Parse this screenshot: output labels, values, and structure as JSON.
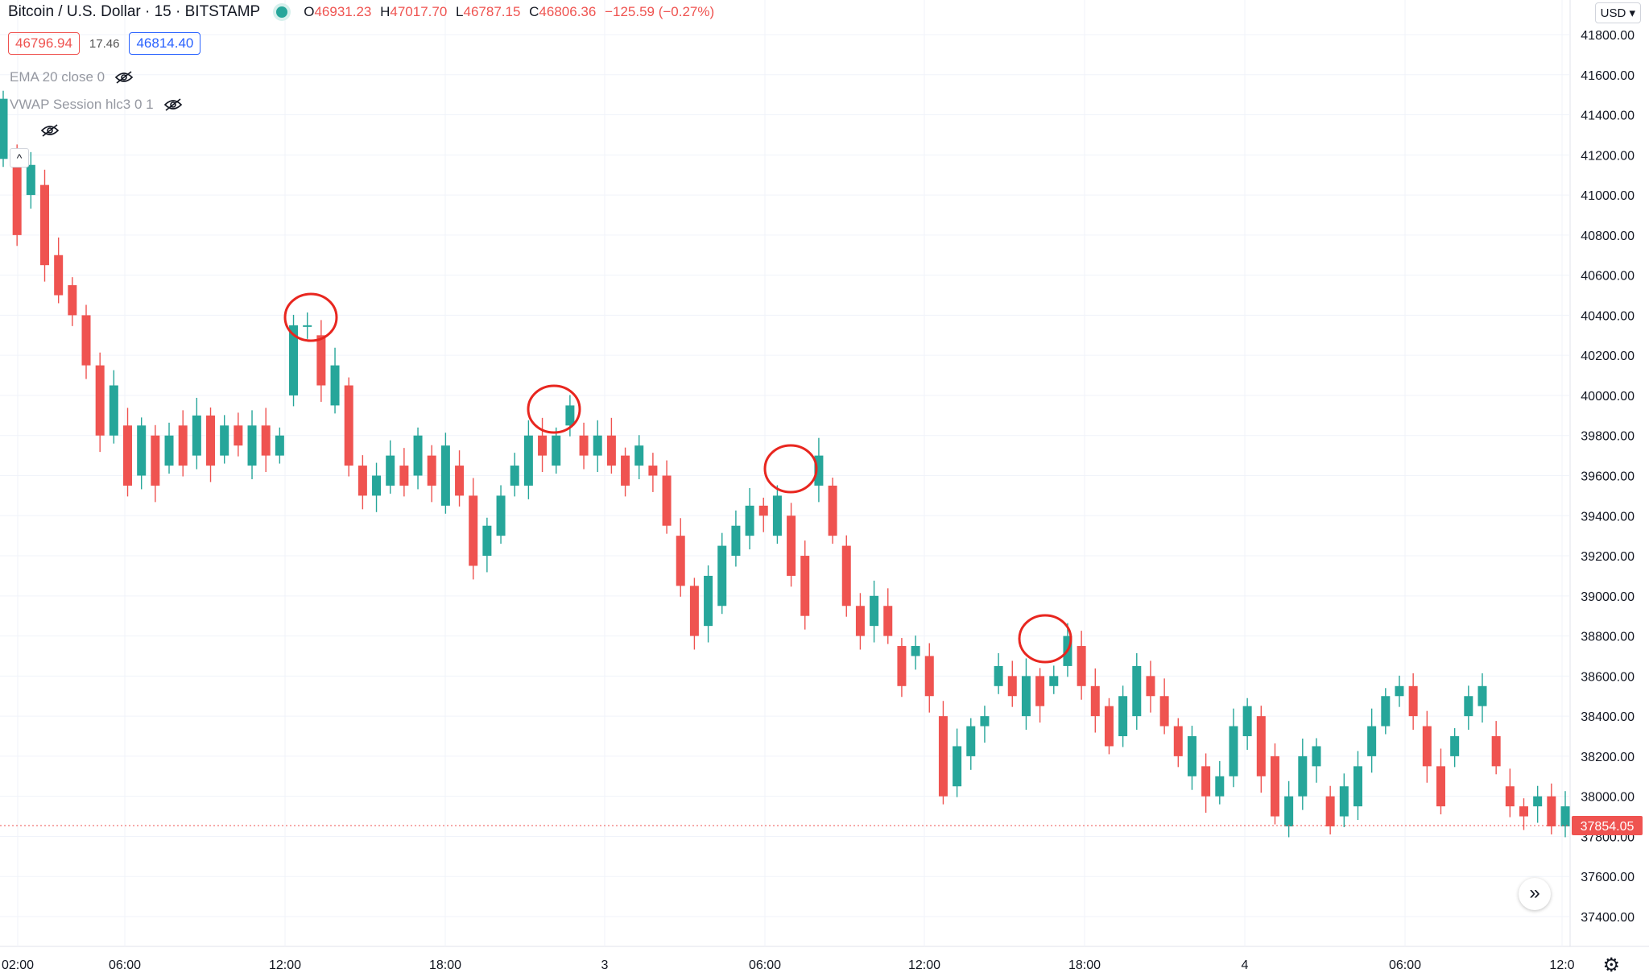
{
  "header": {
    "symbol": "Bitcoin / U.S. Dollar · 15 · BITSTAMP",
    "ohlc": {
      "open_label": "O",
      "open": "46931.23",
      "high_label": "H",
      "high": "47017.70",
      "low_label": "L",
      "low": "46787.15",
      "close_label": "C",
      "close": "46806.36",
      "change": "−125.59 (−0.27%)"
    },
    "bid": "46796.94",
    "spread": "17.46",
    "ask": "46814.40"
  },
  "indicators": {
    "ema": "EMA 20 close 0",
    "vwap": "VWAP Session hlc3 0 1"
  },
  "currency_label": "USD",
  "icons": {
    "scroll_right": "double-chevron-right-icon",
    "settings": "gear-icon",
    "visibility": "eye-off-icon",
    "collapse": "chevron-up-icon"
  },
  "colors": {
    "up": "#26a69a",
    "down": "#ef5350",
    "annotation": "#e8261f",
    "grid": "#f0f3fa"
  },
  "chart_data": {
    "type": "candlestick",
    "y_ticks": [
      "37400.00",
      "37600.00",
      "37800.00",
      "38000.00",
      "38200.00",
      "38400.00",
      "38600.00",
      "38800.00",
      "39000.00",
      "39200.00",
      "39400.00",
      "39600.00",
      "39800.00",
      "40000.00",
      "40200.00",
      "40400.00",
      "40600.00",
      "40800.00",
      "41000.00",
      "41200.00",
      "41400.00",
      "41600.00",
      "41800.00"
    ],
    "x_ticks": [
      "02:00",
      "06:00",
      "12:00",
      "18:00",
      "3",
      "06:00",
      "12:00",
      "18:00",
      "4",
      "06:00",
      "12:0"
    ],
    "ylim": [
      37250,
      41900
    ],
    "last_price": "37854.05",
    "grid": true,
    "points": [
      [
        41180,
        41480
      ],
      [
        40800,
        41200
      ],
      [
        41000,
        41150
      ],
      [
        40650,
        41050
      ],
      [
        40500,
        40700
      ],
      [
        40400,
        40550
      ],
      [
        40150,
        40400
      ],
      [
        39800,
        40150
      ],
      [
        39800,
        40050
      ],
      [
        39550,
        39850
      ],
      [
        39600,
        39850
      ],
      [
        39550,
        39800
      ],
      [
        39650,
        39800
      ],
      [
        39650,
        39850
      ],
      [
        39700,
        39900
      ],
      [
        39650,
        39900
      ],
      [
        39700,
        39850
      ],
      [
        39750,
        39850
      ],
      [
        39650,
        39850
      ],
      [
        39700,
        39850
      ],
      [
        39700,
        39800
      ],
      [
        40000,
        40350
      ],
      [
        40350,
        40350
      ],
      [
        40050,
        40300
      ],
      [
        39950,
        40150
      ],
      [
        39650,
        40050
      ],
      [
        39500,
        39650
      ],
      [
        39500,
        39600
      ],
      [
        39550,
        39700
      ],
      [
        39550,
        39650
      ],
      [
        39600,
        39800
      ],
      [
        39550,
        39700
      ],
      [
        39450,
        39750
      ],
      [
        39500,
        39650
      ],
      [
        39150,
        39500
      ],
      [
        39200,
        39350
      ],
      [
        39300,
        39500
      ],
      [
        39550,
        39650
      ],
      [
        39550,
        39800
      ],
      [
        39700,
        39800
      ],
      [
        39650,
        39800
      ],
      [
        39850,
        39950
      ],
      [
        39700,
        39800
      ],
      [
        39700,
        39800
      ],
      [
        39650,
        39800
      ],
      [
        39550,
        39700
      ],
      [
        39650,
        39750
      ],
      [
        39600,
        39650
      ],
      [
        39350,
        39600
      ],
      [
        39050,
        39300
      ],
      [
        38800,
        39050
      ],
      [
        38850,
        39100
      ],
      [
        38950,
        39250
      ],
      [
        39200,
        39350
      ],
      [
        39300,
        39450
      ],
      [
        39400,
        39450
      ],
      [
        39300,
        39500
      ],
      [
        39100,
        39400
      ],
      [
        38900,
        39200
      ],
      [
        39550,
        39700
      ],
      [
        39300,
        39550
      ],
      [
        38950,
        39250
      ],
      [
        38800,
        38950
      ],
      [
        38850,
        39000
      ],
      [
        38800,
        38950
      ],
      [
        38550,
        38750
      ],
      [
        38700,
        38750
      ],
      [
        38500,
        38700
      ],
      [
        38000,
        38400
      ],
      [
        38050,
        38250
      ],
      [
        38200,
        38350
      ],
      [
        38350,
        38400
      ],
      [
        38550,
        38650
      ],
      [
        38500,
        38600
      ],
      [
        38400,
        38600
      ],
      [
        38450,
        38600
      ],
      [
        38550,
        38600
      ],
      [
        38650,
        38800
      ],
      [
        38550,
        38750
      ],
      [
        38400,
        38550
      ],
      [
        38250,
        38450
      ],
      [
        38300,
        38500
      ],
      [
        38400,
        38650
      ],
      [
        38500,
        38600
      ],
      [
        38350,
        38500
      ],
      [
        38200,
        38350
      ],
      [
        38100,
        38300
      ],
      [
        38000,
        38150
      ],
      [
        38000,
        38100
      ],
      [
        38100,
        38350
      ],
      [
        38300,
        38450
      ],
      [
        38100,
        38400
      ],
      [
        37900,
        38200
      ],
      [
        37850,
        38000
      ],
      [
        38000,
        38200
      ],
      [
        38150,
        38250
      ],
      [
        37850,
        38000
      ],
      [
        37900,
        38050
      ],
      [
        37950,
        38150
      ],
      [
        38200,
        38350
      ],
      [
        38350,
        38500
      ],
      [
        38500,
        38550
      ],
      [
        38400,
        38550
      ],
      [
        38150,
        38350
      ],
      [
        37950,
        38150
      ],
      [
        38200,
        38300
      ],
      [
        38400,
        38500
      ],
      [
        38450,
        38550
      ],
      [
        38150,
        38300
      ],
      [
        37950,
        38050
      ],
      [
        37900,
        37950
      ],
      [
        37950,
        38000
      ],
      [
        37850,
        38000
      ],
      [
        37850,
        37950
      ]
    ]
  },
  "annotations": [
    "circle-1",
    "circle-2",
    "circle-3",
    "circle-4"
  ]
}
